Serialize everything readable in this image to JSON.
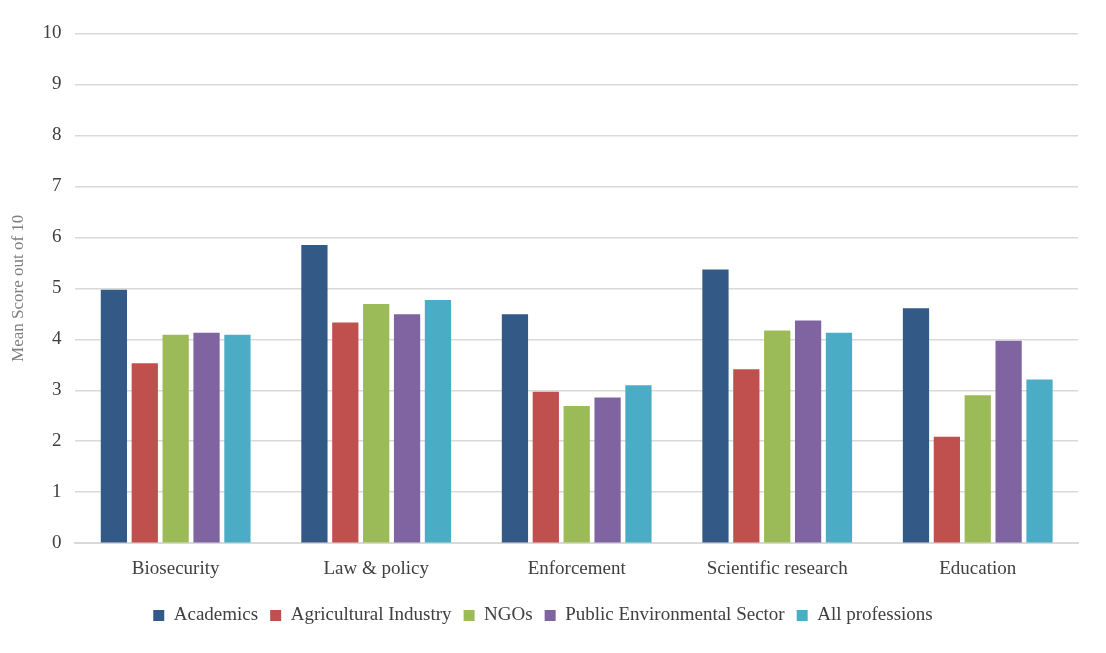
{
  "chart_data": {
    "type": "bar",
    "ylabel": "Mean Score out of 10",
    "categories": [
      "Biosecurity",
      "Law & policy",
      "Enforcement",
      "Scientific research",
      "Education"
    ],
    "series": [
      {
        "name": "Academics",
        "color": "#335a87",
        "values": [
          4.97,
          5.85,
          4.49,
          5.37,
          4.61
        ]
      },
      {
        "name": "Agricultural Industry",
        "color": "#c0504e",
        "values": [
          3.53,
          4.33,
          2.97,
          3.41,
          2.09
        ]
      },
      {
        "name": "NGOs",
        "color": "#9bbb59",
        "values": [
          4.09,
          4.69,
          2.69,
          4.17,
          2.9
        ]
      },
      {
        "name": "Public Environmental Sector",
        "color": "#8064a2",
        "values": [
          4.13,
          4.49,
          2.86,
          4.37,
          3.97
        ]
      },
      {
        "name": "All professions",
        "color": "#4bacc6",
        "values": [
          4.09,
          4.77,
          3.1,
          4.13,
          3.21
        ]
      }
    ],
    "ylim": [
      0,
      10
    ],
    "yticks": [
      0,
      1,
      2,
      3,
      4,
      5,
      6,
      7,
      8,
      9,
      10
    ],
    "grid": "y",
    "legend": "bottom"
  }
}
